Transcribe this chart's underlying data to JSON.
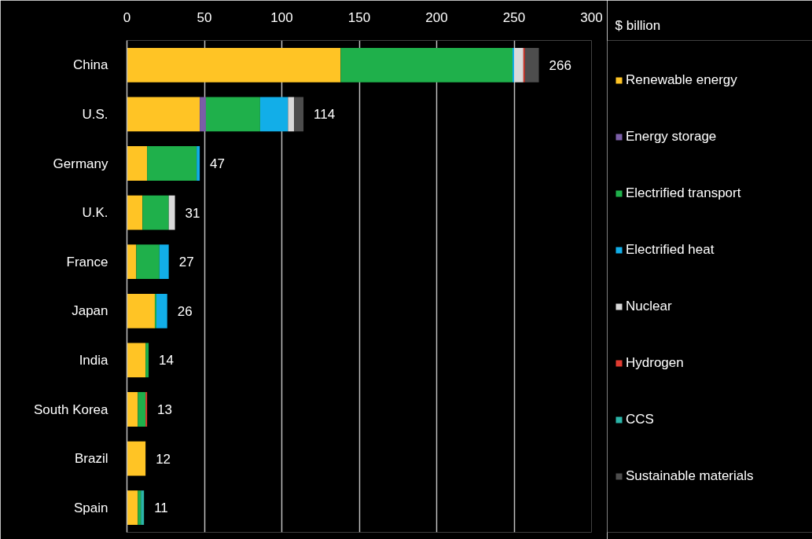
{
  "chart_data": {
    "type": "bar",
    "orientation": "horizontal",
    "stacked": true,
    "xlabel": "$ billion",
    "categories": [
      "China",
      "U.S.",
      "Germany",
      "U.K.",
      "France",
      "Japan",
      "India",
      "South Korea",
      "Brazil",
      "Spain"
    ],
    "series": [
      {
        "name": "Renewable energy",
        "color": "#ffc425",
        "values": [
          138,
          47,
          13,
          10,
          6,
          18,
          12,
          7,
          12,
          7
        ]
      },
      {
        "name": "Energy storage",
        "color": "#7b5ea7",
        "values": [
          null,
          4,
          null,
          null,
          null,
          null,
          null,
          null,
          null,
          null
        ]
      },
      {
        "name": "Electrified transport",
        "color": "#1fb04b",
        "values": [
          111,
          35,
          32,
          17,
          15,
          1,
          2,
          5,
          null,
          2
        ]
      },
      {
        "name": "Electrified heat",
        "color": "#12aee8",
        "values": [
          1,
          18,
          2,
          null,
          6,
          7,
          null,
          null,
          null,
          null
        ]
      },
      {
        "name": "Nuclear",
        "color": "#d9d9d9",
        "values": [
          6,
          4,
          null,
          4,
          null,
          null,
          null,
          null,
          null,
          null
        ]
      },
      {
        "name": "Hydrogen",
        "color": "#e03c31",
        "values": [
          1,
          null,
          null,
          null,
          null,
          null,
          null,
          1,
          null,
          null
        ]
      },
      {
        "name": "CCS",
        "color": "#2bb5a8",
        "values": [
          null,
          null,
          null,
          null,
          null,
          null,
          null,
          null,
          null,
          2
        ]
      },
      {
        "name": "Sustainable materials",
        "color": "#4d4d4d",
        "values": [
          9,
          6,
          null,
          null,
          null,
          null,
          null,
          null,
          null,
          null
        ]
      }
    ],
    "xlim": [
      0,
      300
    ],
    "xticks": [
      0,
      50,
      100,
      150,
      200,
      250,
      300
    ],
    "grid": "x",
    "legend": "right",
    "totals": [
      "266",
      "114",
      "47",
      "31",
      "27",
      "26",
      "14",
      "13",
      "12",
      "11"
    ]
  }
}
